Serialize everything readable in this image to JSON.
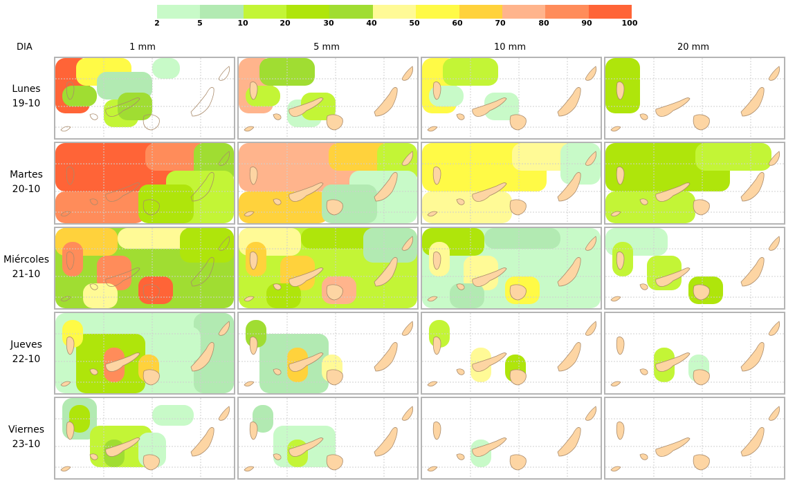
{
  "legend": {
    "ticks": [
      "2",
      "5",
      "10",
      "20",
      "30",
      "40",
      "50",
      "60",
      "70",
      "80",
      "90",
      "100"
    ],
    "colors": [
      "#c8fac8",
      "#b2eab2",
      "#c3f536",
      "#afe50b",
      "#a0dd32",
      "#fffa96",
      "#fffa46",
      "#ffd23c",
      "#ffb48c",
      "#ff8c5a",
      "#ff6437"
    ]
  },
  "header": {
    "dia_label": "DIA",
    "columns": [
      "1 mm",
      "5 mm",
      "10 mm",
      "20 mm"
    ]
  },
  "rows": [
    {
      "day": "Lunes",
      "date": "19-10"
    },
    {
      "day": "Martes",
      "date": "20-10"
    },
    {
      "day": "Miércoles",
      "date": "21-10"
    },
    {
      "day": "Jueves",
      "date": "22-10"
    },
    {
      "day": "Viernes",
      "date": "23-10"
    }
  ],
  "map_colors": {
    "land": "#fdd5a3",
    "coast": "#a98a6a",
    "grid": "#cfcfcf",
    "background": "#ffffff"
  }
}
